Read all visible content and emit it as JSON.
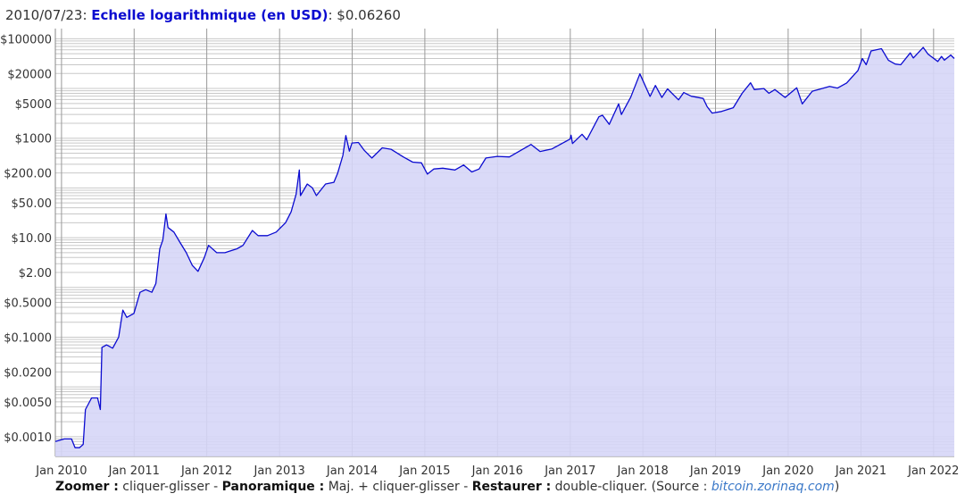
{
  "legend": {
    "date": "2010/07/23",
    "sep1": ": ",
    "series_label": "Echelle logarithmique (en USD)",
    "sep2": ": ",
    "value": "$0.06260"
  },
  "footer": {
    "zoom_bold": "Zoomer :",
    "zoom_text": " cliquer-glisser - ",
    "pan_bold": "Panoramique :",
    "pan_text": " Maj. + cliquer-glisser - ",
    "reset_bold": "Restaurer :",
    "reset_text": " double-cliquer. (Source : ",
    "source_link": "bitcoin.zorinaq.com",
    "close": ")"
  },
  "colors": {
    "line": "#0b0bd0",
    "fill": "#d6d6f7",
    "grid": "#c8c8c8",
    "major_grid": "#999999"
  },
  "chart_data": {
    "type": "area",
    "title": "",
    "xlabel": "",
    "ylabel": "",
    "y_scale": "log",
    "ylim": [
      0.0004,
      160000
    ],
    "xlim": [
      "2009-12-01",
      "2022-04-15"
    ],
    "grid": true,
    "y_ticks": [
      {
        "value": 100000,
        "label": "$100000"
      },
      {
        "value": 20000,
        "label": "$20000"
      },
      {
        "value": 5000,
        "label": "$5000"
      },
      {
        "value": 1000,
        "label": "$1000"
      },
      {
        "value": 200,
        "label": "$200.00"
      },
      {
        "value": 50,
        "label": "$50.00"
      },
      {
        "value": 10,
        "label": "$10.00"
      },
      {
        "value": 2,
        "label": "$2.00"
      },
      {
        "value": 0.5,
        "label": "$0.5000"
      },
      {
        "value": 0.1,
        "label": "$0.1000"
      },
      {
        "value": 0.02,
        "label": "$0.0200"
      },
      {
        "value": 0.005,
        "label": "$0.0050"
      },
      {
        "value": 0.001,
        "label": "$0.0010"
      }
    ],
    "x_ticks": [
      {
        "date": "2010-01-01",
        "label": "Jan 2010"
      },
      {
        "date": "2011-01-01",
        "label": "Jan 2011"
      },
      {
        "date": "2012-01-01",
        "label": "Jan 2012"
      },
      {
        "date": "2013-01-01",
        "label": "Jan 2013"
      },
      {
        "date": "2014-01-01",
        "label": "Jan 2014"
      },
      {
        "date": "2015-01-01",
        "label": "Jan 2015"
      },
      {
        "date": "2016-01-01",
        "label": "Jan 2016"
      },
      {
        "date": "2017-01-01",
        "label": "Jan 2017"
      },
      {
        "date": "2018-01-01",
        "label": "Jan 2018"
      },
      {
        "date": "2019-01-01",
        "label": "Jan 2019"
      },
      {
        "date": "2020-01-01",
        "label": "Jan 2020"
      },
      {
        "date": "2021-01-01",
        "label": "Jan 2021"
      },
      {
        "date": "2022-01-01",
        "label": "Jan 2022"
      }
    ],
    "series": [
      {
        "points": [
          [
            "2009-12-01",
            0.0008
          ],
          [
            "2010-01-15",
            0.0009
          ],
          [
            "2010-02-20",
            0.0009
          ],
          [
            "2010-03-10",
            0.0006
          ],
          [
            "2010-04-01",
            0.0006
          ],
          [
            "2010-04-20",
            0.0007
          ],
          [
            "2010-05-01",
            0.0035
          ],
          [
            "2010-06-01",
            0.006
          ],
          [
            "2010-07-01",
            0.006
          ],
          [
            "2010-07-15",
            0.0035
          ],
          [
            "2010-07-23",
            0.0626
          ],
          [
            "2010-08-01",
            0.065
          ],
          [
            "2010-08-15",
            0.07
          ],
          [
            "2010-09-15",
            0.06
          ],
          [
            "2010-10-15",
            0.1
          ],
          [
            "2010-11-05",
            0.35
          ],
          [
            "2010-11-25",
            0.25
          ],
          [
            "2010-12-31",
            0.3
          ],
          [
            "2011-01-31",
            0.8
          ],
          [
            "2011-02-28",
            0.9
          ],
          [
            "2011-03-31",
            0.8
          ],
          [
            "2011-04-20",
            1.2
          ],
          [
            "2011-05-10",
            6
          ],
          [
            "2011-05-25",
            9
          ],
          [
            "2011-06-10",
            30
          ],
          [
            "2011-06-20",
            16
          ],
          [
            "2011-07-20",
            13
          ],
          [
            "2011-08-20",
            8
          ],
          [
            "2011-09-20",
            5
          ],
          [
            "2011-10-20",
            2.8
          ],
          [
            "2011-11-18",
            2.1
          ],
          [
            "2011-12-20",
            4
          ],
          [
            "2012-01-10",
            7
          ],
          [
            "2012-02-20",
            5
          ],
          [
            "2012-04-01",
            5
          ],
          [
            "2012-06-01",
            6
          ],
          [
            "2012-07-01",
            7
          ],
          [
            "2012-08-17",
            14
          ],
          [
            "2012-09-15",
            11
          ],
          [
            "2012-11-01",
            11
          ],
          [
            "2012-12-15",
            13
          ],
          [
            "2013-01-31",
            20
          ],
          [
            "2013-02-28",
            33
          ],
          [
            "2013-03-25",
            75
          ],
          [
            "2013-04-10",
            230
          ],
          [
            "2013-04-16",
            70
          ],
          [
            "2013-05-20",
            120
          ],
          [
            "2013-06-15",
            100
          ],
          [
            "2013-07-05",
            70
          ],
          [
            "2013-08-20",
            120
          ],
          [
            "2013-10-01",
            130
          ],
          [
            "2013-10-20",
            200
          ],
          [
            "2013-11-15",
            450
          ],
          [
            "2013-11-30",
            1130
          ],
          [
            "2013-12-18",
            550
          ],
          [
            "2013-12-31",
            800
          ],
          [
            "2014-02-01",
            820
          ],
          [
            "2014-03-01",
            580
          ],
          [
            "2014-04-10",
            400
          ],
          [
            "2014-06-01",
            640
          ],
          [
            "2014-07-15",
            600
          ],
          [
            "2014-09-15",
            420
          ],
          [
            "2014-11-01",
            330
          ],
          [
            "2014-12-15",
            320
          ],
          [
            "2015-01-14",
            190
          ],
          [
            "2015-02-15",
            240
          ],
          [
            "2015-04-01",
            250
          ],
          [
            "2015-06-01",
            230
          ],
          [
            "2015-07-15",
            290
          ],
          [
            "2015-08-25",
            210
          ],
          [
            "2015-10-01",
            240
          ],
          [
            "2015-11-04",
            400
          ],
          [
            "2015-12-31",
            430
          ],
          [
            "2016-03-01",
            420
          ],
          [
            "2016-06-18",
            750
          ],
          [
            "2016-08-02",
            540
          ],
          [
            "2016-10-01",
            610
          ],
          [
            "2016-12-31",
            960
          ],
          [
            "2017-01-05",
            1150
          ],
          [
            "2017-01-12",
            780
          ],
          [
            "2017-03-01",
            1200
          ],
          [
            "2017-03-25",
            930
          ],
          [
            "2017-05-25",
            2700
          ],
          [
            "2017-06-12",
            2900
          ],
          [
            "2017-07-16",
            1900
          ],
          [
            "2017-09-01",
            4900
          ],
          [
            "2017-09-15",
            3000
          ],
          [
            "2017-11-01",
            6700
          ],
          [
            "2017-12-17",
            19700
          ],
          [
            "2018-02-06",
            6900
          ],
          [
            "2018-03-05",
            11500
          ],
          [
            "2018-04-06",
            6600
          ],
          [
            "2018-05-05",
            9800
          ],
          [
            "2018-06-29",
            5900
          ],
          [
            "2018-07-25",
            8300
          ],
          [
            "2018-09-01",
            7000
          ],
          [
            "2018-10-31",
            6300
          ],
          [
            "2018-11-20",
            4300
          ],
          [
            "2018-12-15",
            3200
          ],
          [
            "2019-01-31",
            3450
          ],
          [
            "2019-03-31",
            4100
          ],
          [
            "2019-05-15",
            8000
          ],
          [
            "2019-06-26",
            13000
          ],
          [
            "2019-07-15",
            9500
          ],
          [
            "2019-09-01",
            10000
          ],
          [
            "2019-09-26",
            8000
          ],
          [
            "2019-10-26",
            9500
          ],
          [
            "2019-12-17",
            6600
          ],
          [
            "2020-02-13",
            10300
          ],
          [
            "2020-03-12",
            4900
          ],
          [
            "2020-05-01",
            8800
          ],
          [
            "2020-06-01",
            9500
          ],
          [
            "2020-07-27",
            11000
          ],
          [
            "2020-09-05",
            10200
          ],
          [
            "2020-10-21",
            12900
          ],
          [
            "2020-12-17",
            23000
          ],
          [
            "2021-01-08",
            40000
          ],
          [
            "2021-01-27",
            30000
          ],
          [
            "2021-02-21",
            57000
          ],
          [
            "2021-04-14",
            63000
          ],
          [
            "2021-05-19",
            37000
          ],
          [
            "2021-06-22",
            31000
          ],
          [
            "2021-07-20",
            30000
          ],
          [
            "2021-09-06",
            52000
          ],
          [
            "2021-09-21",
            41000
          ],
          [
            "2021-11-10",
            67000
          ],
          [
            "2021-12-04",
            49000
          ],
          [
            "2022-01-22",
            35000
          ],
          [
            "2022-02-10",
            44000
          ],
          [
            "2022-02-24",
            37000
          ],
          [
            "2022-03-28",
            47000
          ],
          [
            "2022-04-15",
            40000
          ]
        ]
      }
    ]
  }
}
